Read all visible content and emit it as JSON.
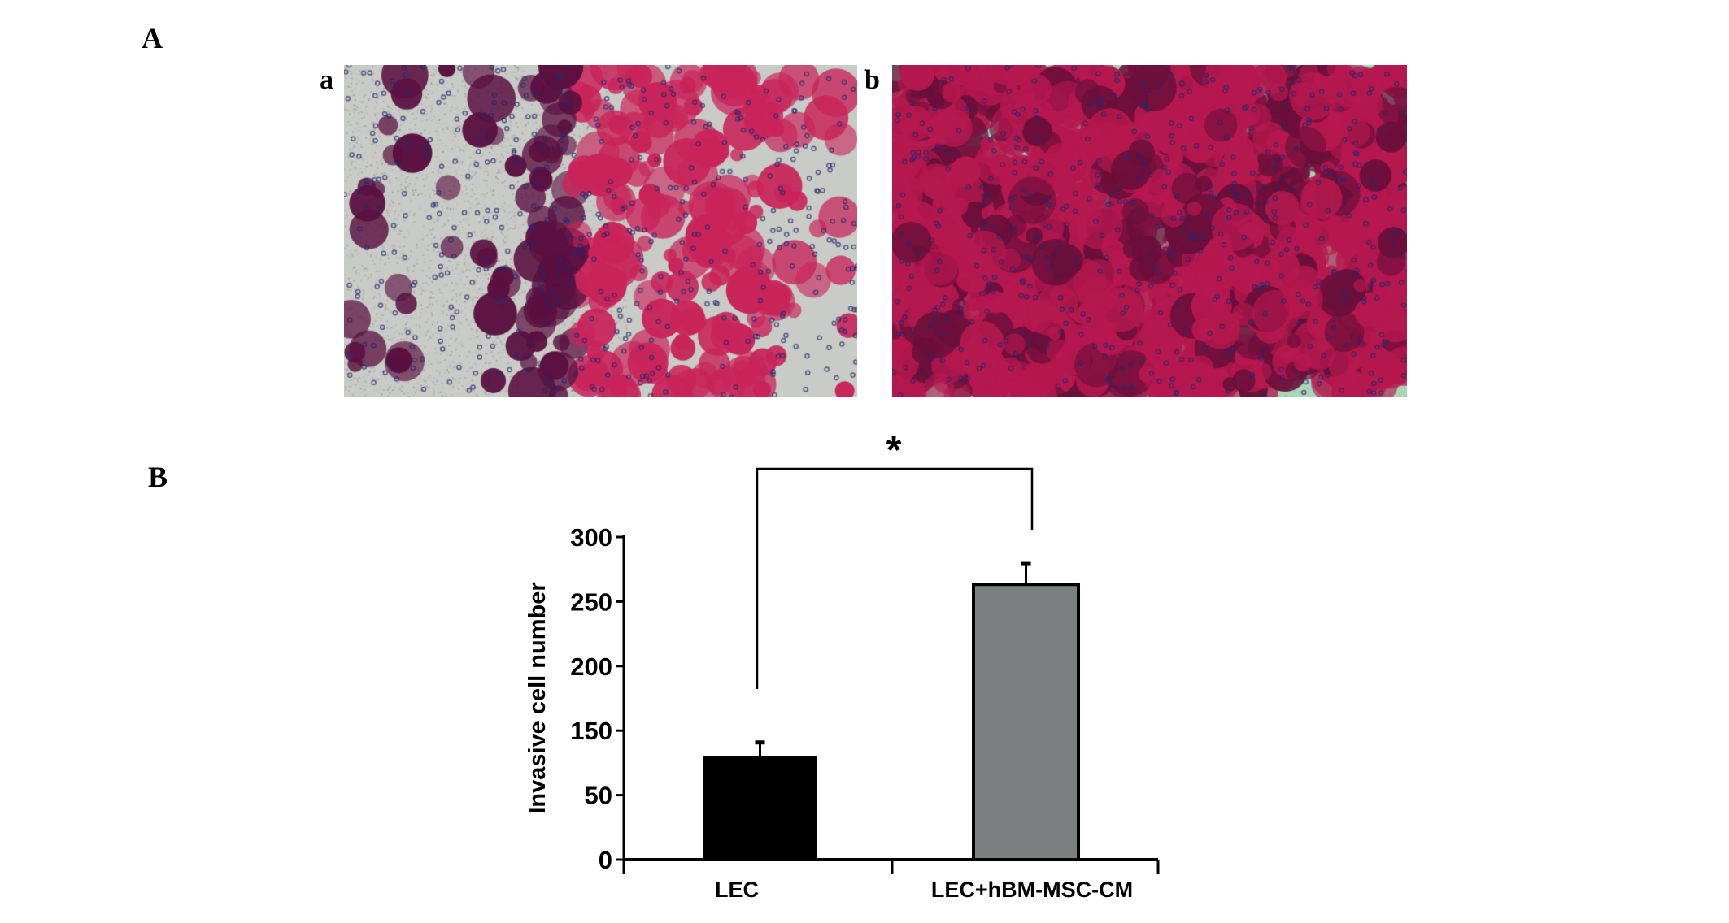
{
  "figure": {
    "panel_A_label": "A",
    "panel_B_label": "B",
    "subpanels": [
      {
        "label": "a",
        "description_colors": {
          "background": "#c9cbc6",
          "stain": "#c8245a",
          "dark_stain": "#5a1040"
        }
      },
      {
        "label": "b",
        "description_colors": {
          "background": "#a8d8b8",
          "stain": "#b5184e",
          "dark_stain": "#6a0f3a"
        }
      }
    ]
  },
  "chart_data": {
    "type": "bar",
    "title": "",
    "xlabel": "",
    "ylabel": "Invasive cell number",
    "ylim": [
      0,
      300
    ],
    "y_tick_labels": [
      "0",
      "50",
      "150",
      "200",
      "250",
      "300"
    ],
    "categories": [
      "LEC",
      "LEC+hBM-MSC-CM"
    ],
    "values": [
      95,
      256
    ],
    "error_upper": [
      14,
      19
    ],
    "bar_colors": [
      "#000000",
      "#7a8080"
    ],
    "significance": {
      "between": [
        "LEC",
        "LEC+hBM-MSC-CM"
      ],
      "marker": "*"
    },
    "grid": false,
    "legend": "none"
  }
}
